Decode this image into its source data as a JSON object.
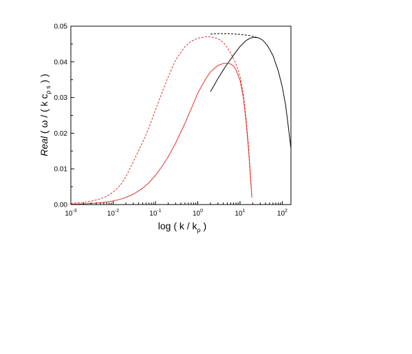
{
  "chart_data": {
    "type": "line",
    "title": "",
    "xlabel": {
      "prefix": "log ( k / k",
      "subscript": "ρ",
      "suffix": " )"
    },
    "ylabel": {
      "italic": "Real",
      "part1": " ( ω / ( k c",
      "subscript": "ρ s",
      "part2": " ) )"
    },
    "x_scale": "log",
    "xlim": [
      0.001,
      160
    ],
    "ylim": [
      0,
      0.05
    ],
    "x_ticks": [
      {
        "value": 0.001,
        "base": "10",
        "exp": "-3"
      },
      {
        "value": 0.01,
        "base": "10",
        "exp": "-2"
      },
      {
        "value": 0.1,
        "base": "10",
        "exp": "-1"
      },
      {
        "value": 1,
        "base": "10",
        "exp": "0"
      },
      {
        "value": 10,
        "base": "10",
        "exp": "1"
      },
      {
        "value": 100,
        "base": "10",
        "exp": "2"
      }
    ],
    "y_ticks": [
      {
        "value": 0.0,
        "label": "0.00"
      },
      {
        "value": 0.01,
        "label": "0.01"
      },
      {
        "value": 0.02,
        "label": "0.02"
      },
      {
        "value": 0.03,
        "label": "0.03"
      },
      {
        "value": 0.04,
        "label": "0.04"
      },
      {
        "value": 0.05,
        "label": "0.05"
      }
    ],
    "grid": false,
    "legend": "none",
    "series": [
      {
        "color": "#000000",
        "style": "solid",
        "x": [
          2,
          3,
          4,
          5,
          6,
          8,
          10,
          14,
          18,
          22,
          28,
          35,
          45,
          60,
          80,
          100,
          120,
          140,
          160
        ],
        "y": [
          0.0316,
          0.0353,
          0.0377,
          0.0394,
          0.0407,
          0.0428,
          0.0443,
          0.046,
          0.0467,
          0.0469,
          0.0467,
          0.046,
          0.0445,
          0.0418,
          0.0375,
          0.033,
          0.0278,
          0.0215,
          0.0157
        ]
      },
      {
        "color": "#000000",
        "style": "dashed",
        "x": [
          2,
          3,
          4,
          6,
          8,
          10,
          14,
          18,
          22,
          26
        ],
        "y": [
          0.0478,
          0.0479,
          0.0479,
          0.0479,
          0.0478,
          0.0477,
          0.0475,
          0.0473,
          0.047,
          0.0468
        ]
      },
      {
        "color": "#e03030",
        "style": "solid",
        "x": [
          0.001,
          0.002,
          0.003,
          0.005,
          0.007,
          0.01,
          0.015,
          0.02,
          0.03,
          0.05,
          0.07,
          0.1,
          0.15,
          0.2,
          0.3,
          0.5,
          0.7,
          1,
          1.5,
          2,
          3,
          4,
          5,
          6,
          7,
          8,
          10,
          12,
          14,
          16,
          18,
          19
        ],
        "y": [
          0.0001,
          0.0002,
          0.0003,
          0.0005,
          0.0007,
          0.001,
          0.0015,
          0.002,
          0.0029,
          0.0046,
          0.0061,
          0.0082,
          0.011,
          0.0134,
          0.0172,
          0.0228,
          0.0268,
          0.0312,
          0.035,
          0.0372,
          0.039,
          0.0395,
          0.0396,
          0.0394,
          0.0388,
          0.0378,
          0.0348,
          0.03,
          0.023,
          0.015,
          0.006,
          0.002
        ]
      },
      {
        "color": "#e03030",
        "style": "dashed",
        "x": [
          0.001,
          0.002,
          0.003,
          0.005,
          0.007,
          0.01,
          0.015,
          0.02,
          0.03,
          0.05,
          0.07,
          0.1,
          0.15,
          0.2,
          0.3,
          0.5,
          0.7,
          1,
          1.5,
          2,
          3,
          4,
          5,
          6,
          8,
          10,
          12,
          14,
          16,
          18,
          19
        ],
        "y": [
          0.0003,
          0.0006,
          0.0009,
          0.0016,
          0.0023,
          0.0035,
          0.0055,
          0.0078,
          0.012,
          0.0175,
          0.0215,
          0.0265,
          0.032,
          0.0358,
          0.0405,
          0.0443,
          0.0458,
          0.0466,
          0.047,
          0.047,
          0.0465,
          0.0455,
          0.044,
          0.0425,
          0.0395,
          0.036,
          0.031,
          0.024,
          0.016,
          0.007,
          0.002
        ]
      }
    ]
  }
}
